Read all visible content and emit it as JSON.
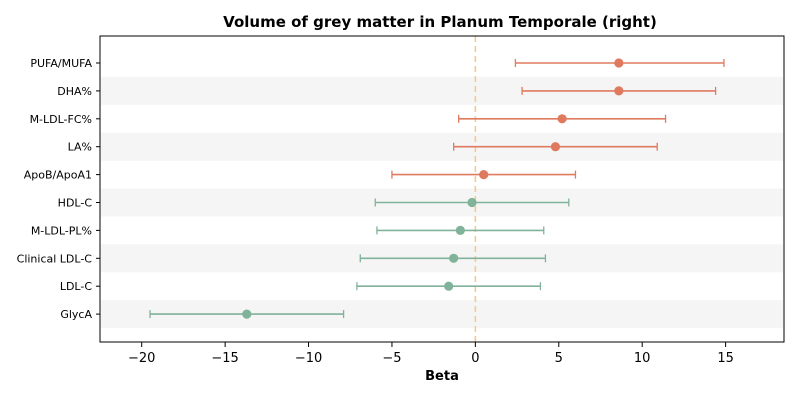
{
  "chart_data": {
    "type": "forest",
    "title": "Volume of grey matter in Planum Temporale (right)",
    "xlabel": "Beta",
    "xlim": [
      -22.5,
      18.5
    ],
    "xticks": [
      -20,
      -15,
      -10,
      -5,
      0,
      5,
      10,
      15
    ],
    "xtick_labels": [
      "−20",
      "−15",
      "−10",
      "−5",
      "0",
      "5",
      "10",
      "15"
    ],
    "reference_line": 0,
    "colors": {
      "positive": "#E07A5F",
      "negative": "#81B29A",
      "stripe": "#f5f5f5",
      "refline": "#F2CC8F"
    },
    "rows": [
      {
        "label": "PUFA/MUFA",
        "estimate": 8.6,
        "lower": 2.4,
        "upper": 14.9,
        "group": "positive"
      },
      {
        "label": "DHA%",
        "estimate": 8.6,
        "lower": 2.8,
        "upper": 14.4,
        "group": "positive"
      },
      {
        "label": "M-LDL-FC%",
        "estimate": 5.2,
        "lower": -1.0,
        "upper": 11.4,
        "group": "positive"
      },
      {
        "label": "LA%",
        "estimate": 4.8,
        "lower": -1.3,
        "upper": 10.9,
        "group": "positive"
      },
      {
        "label": "ApoB/ApoA1",
        "estimate": 0.5,
        "lower": -5.0,
        "upper": 6.0,
        "group": "positive"
      },
      {
        "label": "HDL-C",
        "estimate": -0.2,
        "lower": -6.0,
        "upper": 5.6,
        "group": "negative"
      },
      {
        "label": "M-LDL-PL%",
        "estimate": -0.9,
        "lower": -5.9,
        "upper": 4.1,
        "group": "negative"
      },
      {
        "label": "Clinical LDL-C",
        "estimate": -1.3,
        "lower": -6.9,
        "upper": 4.2,
        "group": "negative"
      },
      {
        "label": "LDL-C",
        "estimate": -1.6,
        "lower": -7.1,
        "upper": 3.9,
        "group": "negative"
      },
      {
        "label": "GlycA",
        "estimate": -13.7,
        "lower": -19.5,
        "upper": -7.9,
        "group": "negative"
      }
    ]
  }
}
